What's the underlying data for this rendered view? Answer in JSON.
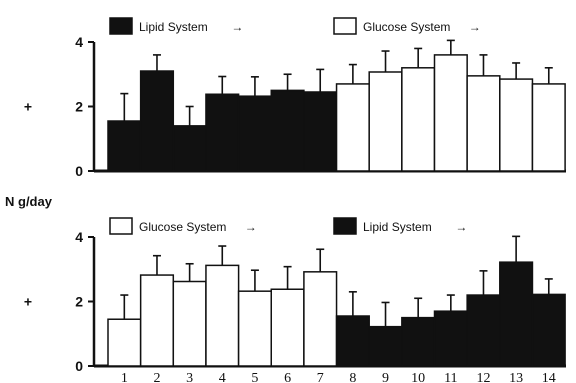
{
  "chart_data": [
    {
      "type": "bar",
      "panel": "top",
      "categories": [
        "1",
        "2",
        "3",
        "4",
        "5",
        "6",
        "7",
        "8",
        "9",
        "10",
        "11",
        "12",
        "13",
        "14"
      ],
      "values": [
        1.55,
        3.1,
        1.4,
        2.38,
        2.32,
        2.5,
        2.45,
        2.7,
        3.07,
        3.2,
        3.6,
        2.95,
        2.85,
        2.7
      ],
      "errors": [
        0.85,
        0.5,
        0.6,
        0.55,
        0.6,
        0.5,
        0.7,
        0.6,
        0.65,
        0.6,
        0.45,
        0.65,
        0.5,
        0.5
      ],
      "fill": [
        "black",
        "black",
        "black",
        "black",
        "black",
        "black",
        "black",
        "white",
        "white",
        "white",
        "white",
        "white",
        "white",
        "white"
      ],
      "legend": [
        {
          "label": "Lipid System",
          "fill": "black",
          "arrow": "→"
        },
        {
          "label": "Glucose System",
          "fill": "white",
          "arrow": "→"
        }
      ],
      "ylim": [
        0,
        4
      ],
      "yticks": [
        "4",
        "2",
        "0"
      ],
      "ylabel_marker": "+"
    },
    {
      "type": "bar",
      "panel": "bottom",
      "categories": [
        "1",
        "2",
        "3",
        "4",
        "5",
        "6",
        "7",
        "8",
        "9",
        "10",
        "11",
        "12",
        "13",
        "14"
      ],
      "values": [
        1.45,
        2.82,
        2.62,
        3.12,
        2.32,
        2.38,
        2.92,
        1.55,
        1.22,
        1.5,
        1.7,
        2.2,
        3.22,
        2.22
      ],
      "errors": [
        0.75,
        0.6,
        0.55,
        0.6,
        0.65,
        0.7,
        0.7,
        0.75,
        0.75,
        0.6,
        0.5,
        0.75,
        0.8,
        0.48
      ],
      "fill": [
        "white",
        "white",
        "white",
        "white",
        "white",
        "white",
        "white",
        "black",
        "black",
        "black",
        "black",
        "black",
        "black",
        "black"
      ],
      "legend": [
        {
          "label": "Glucose System",
          "fill": "white",
          "arrow": "→"
        },
        {
          "label": "Lipid System",
          "fill": "black",
          "arrow": "→"
        }
      ],
      "ylim": [
        0,
        4
      ],
      "yticks": [
        "4",
        "2",
        "0"
      ],
      "ylabel_marker": "+"
    }
  ],
  "ylabel": "N g/day"
}
